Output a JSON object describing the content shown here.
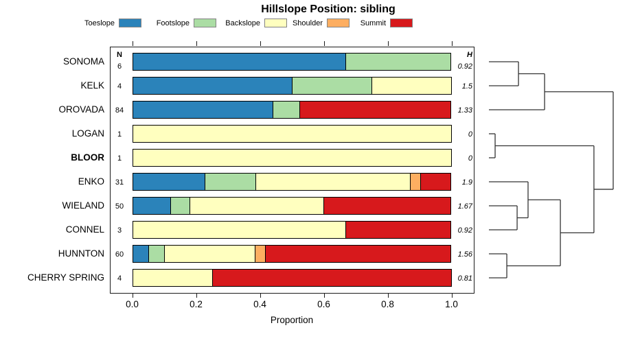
{
  "title": "Hillslope Position: sibling",
  "headers": {
    "n": "N",
    "h": "H"
  },
  "axis": {
    "xlabel": "Proportion",
    "tick_labels": [
      "0.0",
      "0.2",
      "0.4",
      "0.6",
      "0.8",
      "1.0"
    ]
  },
  "legend": {
    "items": [
      {
        "label": "Toeslope",
        "color": "#2B83BA"
      },
      {
        "label": "Footslope",
        "color": "#ABDDA4"
      },
      {
        "label": "Backslope",
        "color": "#FFFFBF"
      },
      {
        "label": "Shoulder",
        "color": "#FDAE61"
      },
      {
        "label": "Summit",
        "color": "#D7191C"
      }
    ]
  },
  "chart_data": {
    "type": "bar",
    "subtype": "horizontal-stacked-proportion",
    "title": "Hillslope Position: sibling",
    "xlabel": "Proportion",
    "xlim": [
      0,
      1
    ],
    "x_ticks": [
      0,
      0.2,
      0.4,
      0.6,
      0.8,
      1.0
    ],
    "classes": [
      "Toeslope",
      "Footslope",
      "Backslope",
      "Shoulder",
      "Summit"
    ],
    "colors": {
      "Toeslope": "#2B83BA",
      "Footslope": "#ABDDA4",
      "Backslope": "#FFFFBF",
      "Shoulder": "#FDAE61",
      "Summit": "#D7191C"
    },
    "rows": [
      {
        "name": "SONOMA",
        "n": 6,
        "h": "0.92",
        "bold": false,
        "segments": [
          [
            "Toeslope",
            0.667
          ],
          [
            "Footslope",
            0.333
          ]
        ]
      },
      {
        "name": "KELK",
        "n": 4,
        "h": "1.5",
        "bold": false,
        "segments": [
          [
            "Toeslope",
            0.5
          ],
          [
            "Footslope",
            0.25
          ],
          [
            "Backslope",
            0.25
          ]
        ]
      },
      {
        "name": "OROVADA",
        "n": 84,
        "h": "1.33",
        "bold": false,
        "segments": [
          [
            "Toeslope",
            0.44
          ],
          [
            "Footslope",
            0.084
          ],
          [
            "Summit",
            0.476
          ]
        ]
      },
      {
        "name": "LOGAN",
        "n": 1,
        "h": "0",
        "bold": false,
        "segments": [
          [
            "Backslope",
            1.0
          ]
        ]
      },
      {
        "name": "BLOOR",
        "n": 1,
        "h": "0",
        "bold": true,
        "segments": [
          [
            "Backslope",
            1.0
          ]
        ]
      },
      {
        "name": "ENKO",
        "n": 31,
        "h": "1.9",
        "bold": false,
        "segments": [
          [
            "Toeslope",
            0.226
          ],
          [
            "Footslope",
            0.161
          ],
          [
            "Backslope",
            0.484
          ],
          [
            "Shoulder",
            0.032
          ],
          [
            "Summit",
            0.097
          ]
        ]
      },
      {
        "name": "WIELAND",
        "n": 50,
        "h": "1.67",
        "bold": false,
        "segments": [
          [
            "Toeslope",
            0.12
          ],
          [
            "Footslope",
            0.06
          ],
          [
            "Backslope",
            0.42
          ],
          [
            "Summit",
            0.4
          ]
        ]
      },
      {
        "name": "CONNEL",
        "n": 3,
        "h": "0.92",
        "bold": false,
        "segments": [
          [
            "Backslope",
            0.667
          ],
          [
            "Summit",
            0.333
          ]
        ]
      },
      {
        "name": "HUNNTON",
        "n": 60,
        "h": "1.56",
        "bold": false,
        "segments": [
          [
            "Toeslope",
            0.05
          ],
          [
            "Footslope",
            0.05
          ],
          [
            "Backslope",
            0.283
          ],
          [
            "Shoulder",
            0.034
          ],
          [
            "Summit",
            0.583
          ]
        ]
      },
      {
        "name": "CHERRY SPRING",
        "n": 4,
        "h": "0.81",
        "bold": false,
        "segments": [
          [
            "Backslope",
            0.25
          ],
          [
            "Summit",
            0.75
          ]
        ]
      }
    ],
    "dendrogram": {
      "leaves": [
        "SONOMA",
        "KELK",
        "OROVADA",
        "LOGAN",
        "BLOOR",
        "ENKO",
        "WIELAND",
        "CONNEL",
        "HUNNTON",
        "CHERRY SPRING"
      ],
      "merges": [
        {
          "id": "m1",
          "a": "SONOMA",
          "b": "KELK",
          "h": 0.238
        },
        {
          "id": "m2",
          "a": "m1",
          "b": "OROVADA",
          "h": 0.448
        },
        {
          "id": "m3",
          "a": "LOGAN",
          "b": "BLOOR",
          "h": 0.05
        },
        {
          "id": "m4",
          "a": "WIELAND",
          "b": "CONNEL",
          "h": 0.227
        },
        {
          "id": "m5",
          "a": "ENKO",
          "b": "m4",
          "h": 0.315
        },
        {
          "id": "m6",
          "a": "HUNNTON",
          "b": "CHERRY SPRING",
          "h": 0.144
        },
        {
          "id": "m7",
          "a": "m5",
          "b": "m6",
          "h": 0.575
        },
        {
          "id": "m8",
          "a": "m3",
          "b": "m7",
          "h": 0.845
        },
        {
          "id": "m9",
          "a": "m2",
          "b": "m8",
          "h": 1.0
        }
      ]
    }
  }
}
